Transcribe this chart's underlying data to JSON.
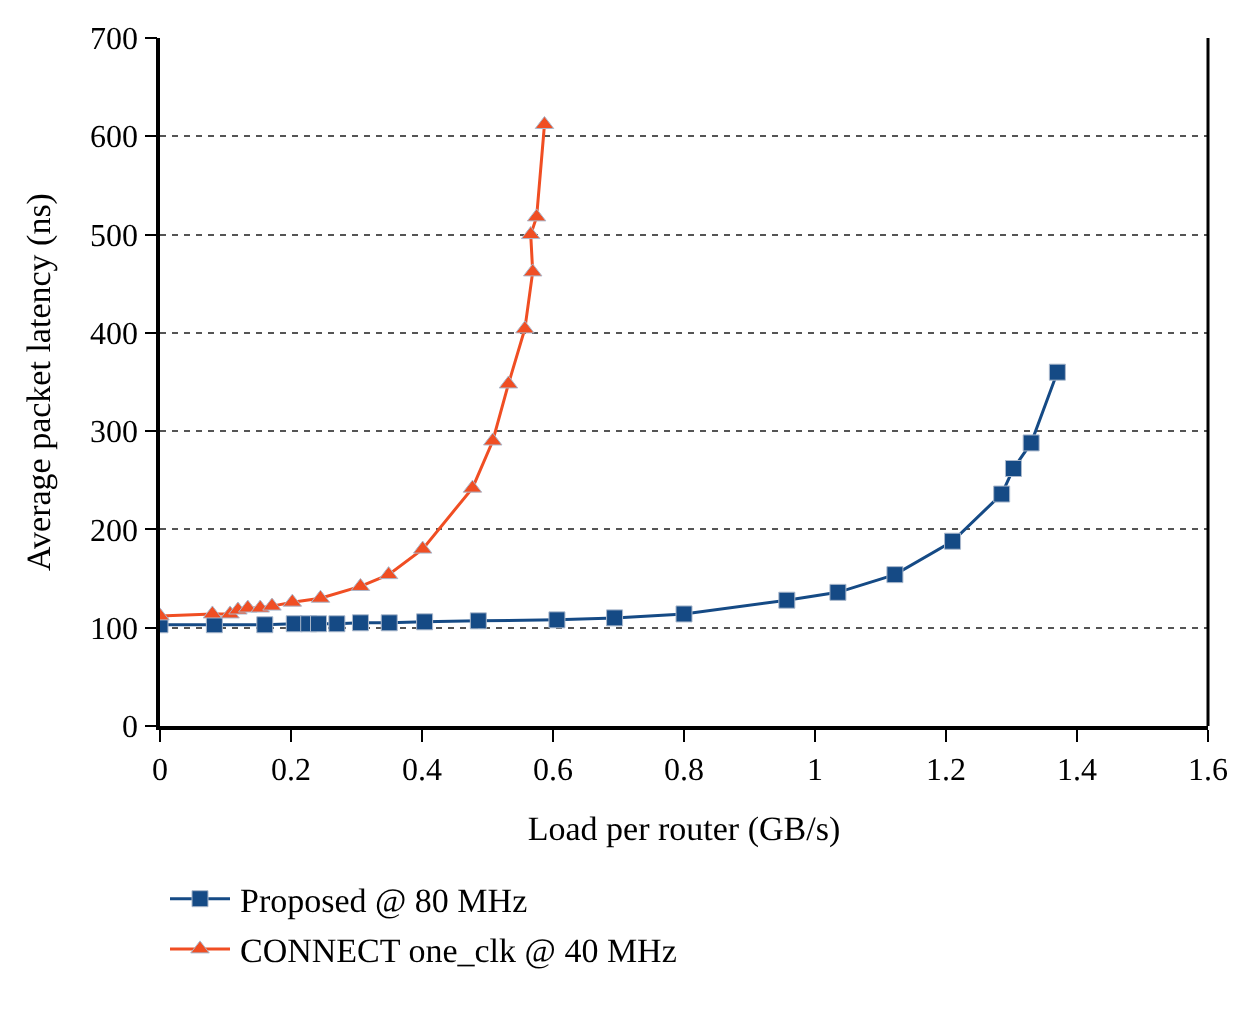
{
  "chart_data": {
    "type": "line",
    "xlabel": "Load per router (GB/s)",
    "ylabel": "Average packet latency (ns)",
    "xlim": [
      0,
      1.6
    ],
    "xticks": [
      0,
      0.2,
      0.4,
      0.6,
      0.8,
      1,
      1.2,
      1.4,
      1.6
    ],
    "ylim": [
      0,
      700
    ],
    "yticks": [
      0,
      100,
      200,
      300,
      400,
      500,
      600,
      700
    ],
    "grid": "y",
    "legend": "bottom left",
    "series": [
      {
        "name": "Proposed @ 80 MHz",
        "color": "#154a85",
        "marker": "square",
        "x": [
          0,
          0.083,
          0.16,
          0.205,
          0.227,
          0.242,
          0.27,
          0.306,
          0.35,
          0.404,
          0.486,
          0.606,
          0.694,
          0.8,
          0.957,
          1.035,
          1.122,
          1.21,
          1.285,
          1.303,
          1.33,
          1.37
        ],
        "values": [
          103,
          103,
          103,
          104,
          104,
          104,
          104,
          105,
          105,
          106,
          107,
          108,
          110,
          114,
          128,
          136,
          154,
          188,
          236,
          262,
          288,
          360
        ]
      },
      {
        "name": "CONNECT one_clk @ 40 MHz",
        "color": "#f04e23",
        "marker": "triangle",
        "x": [
          0,
          0.08,
          0.107,
          0.119,
          0.134,
          0.153,
          0.171,
          0.202,
          0.245,
          0.306,
          0.349,
          0.401,
          0.477,
          0.508,
          0.532,
          0.557,
          0.569,
          0.566,
          0.575,
          0.587
        ],
        "values": [
          112,
          114,
          114,
          118,
          120,
          120,
          122,
          126,
          130,
          142,
          154,
          180,
          242,
          290,
          348,
          404,
          462,
          500,
          518,
          612
        ]
      }
    ]
  }
}
